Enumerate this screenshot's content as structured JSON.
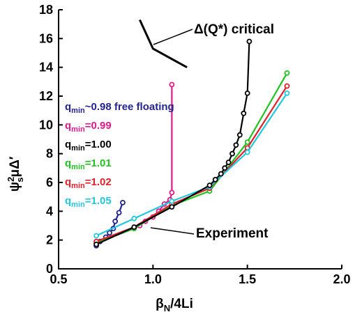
{
  "chart_data": {
    "type": "line",
    "xlim": [
      0.5,
      2.0
    ],
    "ylim": [
      0,
      18
    ],
    "x_ticks": [
      "0.5",
      "1.0",
      "1.5",
      "2.0"
    ],
    "y_ticks": [
      "0",
      "2",
      "4",
      "6",
      "8",
      "10",
      "12",
      "14",
      "16",
      "18"
    ],
    "xlabel": {
      "main": "β",
      "sub": "N",
      "rest": "/4Li"
    },
    "ylabel": {
      "main": "ψ",
      "sub": "s",
      "sup": "2",
      "rest": "μΔ′"
    },
    "series": [
      {
        "key": "s098",
        "label_prefix": "q",
        "label_sub": "min",
        "label_rest": "~0.98 free floating",
        "color": "#23238f",
        "x": [
          0.7,
          0.72,
          0.75,
          0.77,
          0.79,
          0.8,
          0.82,
          0.84
        ],
        "y": [
          1.6,
          1.9,
          2.2,
          2.5,
          2.8,
          3.3,
          3.9,
          4.6
        ]
      },
      {
        "key": "s099",
        "label_prefix": "q",
        "label_sub": "min",
        "label_rest": "=0.99",
        "color": "#e0198f",
        "x": [
          0.7,
          0.9,
          0.93,
          0.96,
          1.0,
          1.03,
          1.06,
          1.09,
          1.1,
          1.1
        ],
        "y": [
          1.8,
          2.8,
          3.0,
          3.3,
          3.6,
          4.0,
          4.5,
          4.8,
          5.3,
          12.8
        ]
      },
      {
        "key": "s100",
        "label_prefix": "q",
        "label_sub": "min",
        "label_rest": "=1.00",
        "color": "#000000",
        "x": [
          0.7,
          0.9,
          1.1,
          1.3,
          1.33,
          1.36,
          1.38,
          1.4,
          1.42,
          1.44,
          1.46,
          1.48,
          1.5,
          1.51
        ],
        "y": [
          1.7,
          2.9,
          4.3,
          5.8,
          6.2,
          6.6,
          7.0,
          7.4,
          8.0,
          8.6,
          9.3,
          10.8,
          12.2,
          15.8
        ]
      },
      {
        "key": "s101",
        "label_prefix": "q",
        "label_sub": "min",
        "label_rest": "=1.01",
        "color": "#1fc21f",
        "x": [
          0.7,
          0.9,
          1.1,
          1.3,
          1.5,
          1.71
        ],
        "y": [
          1.8,
          2.8,
          4.4,
          5.4,
          8.8,
          13.6
        ]
      },
      {
        "key": "s102",
        "label_prefix": "q",
        "label_sub": "min",
        "label_rest": "=1.02",
        "color": "#e0202a",
        "x": [
          0.7,
          0.9,
          1.1,
          1.3,
          1.5,
          1.71
        ],
        "y": [
          1.9,
          2.9,
          4.5,
          5.6,
          8.4,
          12.7
        ]
      },
      {
        "key": "s105",
        "label_prefix": "q",
        "label_sub": "min",
        "label_rest": "=1.05",
        "color": "#22c8e0",
        "x": [
          0.7,
          0.9,
          1.1,
          1.3,
          1.5,
          1.71
        ],
        "y": [
          2.3,
          3.5,
          4.7,
          5.7,
          8.1,
          12.2
        ]
      },
      {
        "key": "critical",
        "color": "#000000",
        "x": [
          0.93,
          1.0,
          1.18
        ],
        "y": [
          17.3,
          15.3,
          14.0
        ]
      }
    ],
    "annotations": {
      "critical": "Δ(Q*) critical",
      "experiment": "Experiment"
    }
  }
}
